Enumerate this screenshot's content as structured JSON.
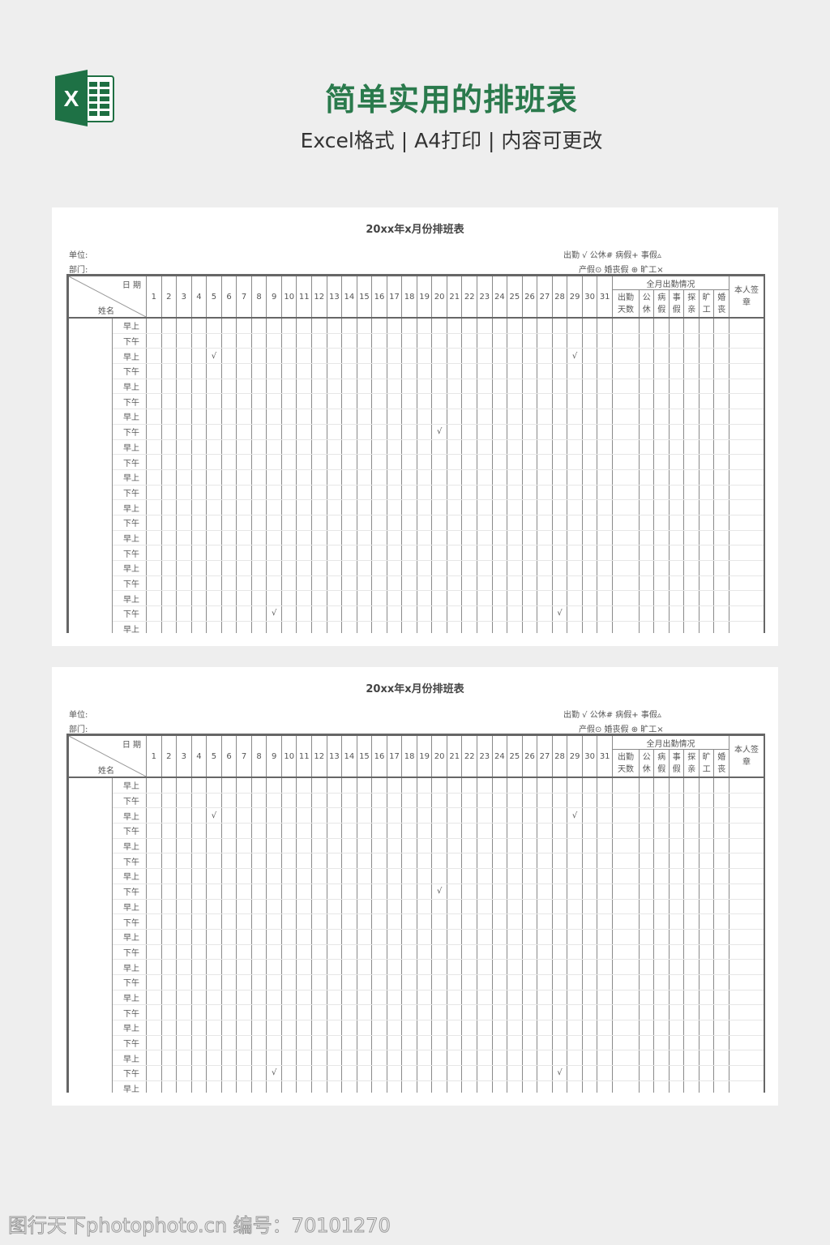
{
  "header": {
    "title": "简单实用的排班表",
    "subtitle": "Excel格式 | A4打印 | 内容可更改",
    "logo_icon": "excel-icon",
    "accent_color": "#2a7a4c"
  },
  "sheets": [
    {
      "title": "20xx年x月份排班表",
      "unit_label": "单位:",
      "dept_label": "部门:",
      "legend_line1": "出勤 √   公休#   病假+    事假▵",
      "legend_line2": "产假⊙ 婚丧假 ⊕ 旷工×",
      "corner_date": "日 期",
      "corner_name": "姓名",
      "days": [
        "1",
        "2",
        "3",
        "4",
        "5",
        "6",
        "7",
        "8",
        "9",
        "10",
        "11",
        "12",
        "13",
        "14",
        "15",
        "16",
        "17",
        "18",
        "19",
        "20",
        "21",
        "22",
        "23",
        "24",
        "25",
        "26",
        "27",
        "28",
        "29",
        "30",
        "31"
      ],
      "summary_title": "全月出勤情况",
      "summary_cols": [
        "出勤天数",
        "公休",
        "病假",
        "事假",
        "探亲",
        "旷工",
        "婚丧"
      ],
      "signature": "本人签章",
      "row_labels": [
        "早上",
        "下午",
        "早上",
        "下午",
        "早上",
        "下午",
        "早上",
        "下午",
        "早上",
        "下午",
        "早上",
        "下午",
        "早上",
        "下午",
        "早上",
        "下午",
        "早上",
        "下午",
        "早上",
        "下午",
        "早上"
      ],
      "marks": [
        {
          "row": 3,
          "day": 5,
          "symbol": "√"
        },
        {
          "row": 3,
          "day": 29,
          "symbol": "√"
        },
        {
          "row": 8,
          "day": 20,
          "symbol": "√"
        },
        {
          "row": 20,
          "day": 9,
          "symbol": "√"
        },
        {
          "row": 20,
          "day": 28,
          "symbol": "√"
        }
      ]
    },
    {
      "title": "20xx年x月份排班表",
      "unit_label": "单位:",
      "dept_label": "部门:",
      "legend_line1": "出勤 √   公休#   病假+    事假▵",
      "legend_line2": "产假⊙ 婚丧假 ⊕ 旷工×",
      "corner_date": "日 期",
      "corner_name": "姓名",
      "days": [
        "1",
        "2",
        "3",
        "4",
        "5",
        "6",
        "7",
        "8",
        "9",
        "10",
        "11",
        "12",
        "13",
        "14",
        "15",
        "16",
        "17",
        "18",
        "19",
        "20",
        "21",
        "22",
        "23",
        "24",
        "25",
        "26",
        "27",
        "28",
        "29",
        "30",
        "31"
      ],
      "summary_title": "全月出勤情况",
      "summary_cols": [
        "出勤天数",
        "公休",
        "病假",
        "事假",
        "探亲",
        "旷工",
        "婚丧"
      ],
      "signature": "本人签章",
      "row_labels": [
        "早上",
        "下午",
        "早上",
        "下午",
        "早上",
        "下午",
        "早上",
        "下午",
        "早上",
        "下午",
        "早上",
        "下午",
        "早上",
        "下午",
        "早上",
        "下午",
        "早上",
        "下午",
        "早上",
        "下午",
        "早上"
      ],
      "marks": [
        {
          "row": 3,
          "day": 5,
          "symbol": "√"
        },
        {
          "row": 3,
          "day": 29,
          "symbol": "√"
        },
        {
          "row": 8,
          "day": 20,
          "symbol": "√"
        },
        {
          "row": 20,
          "day": 9,
          "symbol": "√"
        },
        {
          "row": 20,
          "day": 28,
          "symbol": "√"
        }
      ]
    }
  ],
  "watermark": "图行天下photophoto.cn 编号：70101270"
}
